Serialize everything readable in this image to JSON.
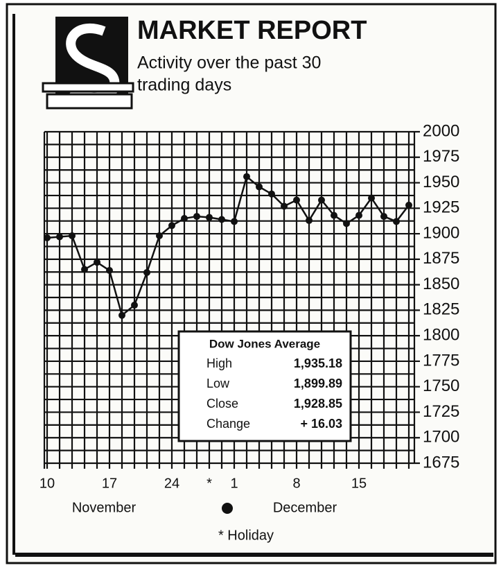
{
  "chart_data": {
    "type": "line",
    "title": "MARKET REPORT",
    "subtitle": [
      "Activity over the past 30",
      "trading days"
    ],
    "categories": [
      "10",
      null,
      null,
      null,
      null,
      "17",
      null,
      null,
      null,
      null,
      "24",
      null,
      null,
      "*",
      null,
      "1",
      null,
      null,
      null,
      null,
      "8",
      null,
      null,
      null,
      null,
      "15",
      null,
      null,
      null,
      null
    ],
    "values": [
      1896,
      1897,
      1898,
      1865,
      1872,
      1864,
      1820,
      1830,
      1862,
      1898,
      1908,
      1915,
      1917,
      1916,
      1914,
      1912,
      1956,
      1946,
      1939,
      1927,
      1933,
      1913,
      1933,
      1918,
      1910,
      1918,
      1935,
      1917,
      1912,
      1928
    ],
    "color": "#111111",
    "ylim": [
      1675,
      2000
    ],
    "yticks": [
      1675,
      1700,
      1725,
      1750,
      1775,
      1800,
      1825,
      1850,
      1875,
      1900,
      1925,
      1950,
      1975,
      2000
    ],
    "grid": true,
    "months": [
      "November",
      "December"
    ],
    "footnote": "* Holiday",
    "summary": {
      "title": "Dow Jones Average",
      "rows": [
        [
          "High",
          "1,935.18"
        ],
        [
          "Low",
          "1,899.89"
        ],
        [
          "Close",
          "1,928.85"
        ],
        [
          "Change",
          "+ 16.03"
        ]
      ]
    }
  }
}
